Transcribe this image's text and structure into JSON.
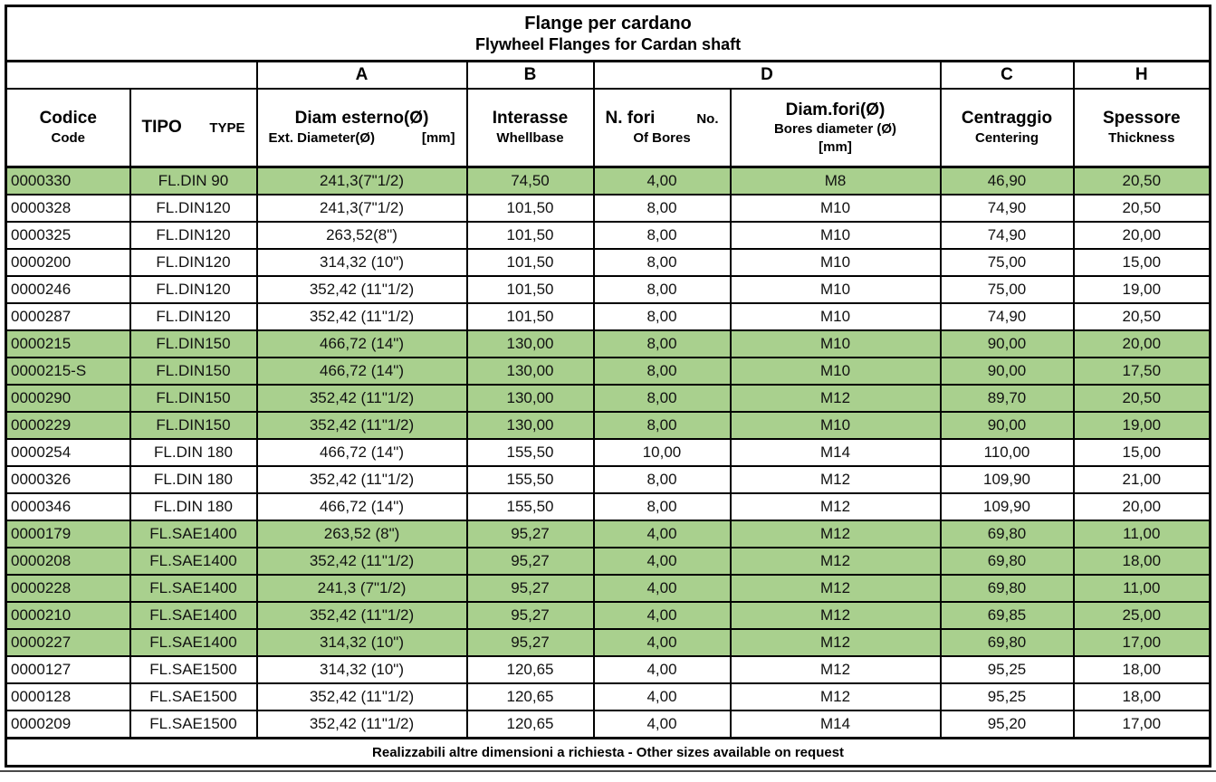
{
  "title": {
    "line1": "Flange per cardano",
    "line2": "Flywheel Flanges for Cardan shaft"
  },
  "group_headers": {
    "empty": "",
    "a": "A",
    "b": "B",
    "d": "D",
    "c": "C",
    "h": "H"
  },
  "columns": {
    "codice": {
      "main": "Codice",
      "sub": "Code"
    },
    "tipo": {
      "main": "TIPO",
      "side": "TYPE"
    },
    "diam_esterno": {
      "main": "Diam esterno(Ø)",
      "sub_left": "Ext. Diameter(Ø)",
      "sub_right": "[mm]"
    },
    "interasse": {
      "main": "Interasse",
      "sub": "Whellbase"
    },
    "n_fori": {
      "main": "N. fori",
      "side": "No.",
      "sub": "Of Bores"
    },
    "diam_fori": {
      "main": "Diam.fori(Ø)",
      "sub": "Bores  diameter (Ø)",
      "sub2": "[mm]"
    },
    "centraggio": {
      "main": "Centraggio",
      "sub": "Centering"
    },
    "spessore": {
      "main": "Spessore",
      "sub": "Thickness"
    }
  },
  "field_names": [
    "codice",
    "tipo",
    "diam-esterno",
    "interasse",
    "n-fori",
    "diam-fori",
    "centraggio",
    "spessore"
  ],
  "rows": [
    {
      "highlighted": true,
      "cells": [
        "0000330",
        "FL.DIN 90",
        "241,3(7\"1/2)",
        "74,50",
        "4,00",
        "M8",
        "46,90",
        "20,50"
      ]
    },
    {
      "highlighted": false,
      "cells": [
        "0000328",
        "FL.DIN120",
        "241,3(7\"1/2)",
        "101,50",
        "8,00",
        "M10",
        "74,90",
        "20,50"
      ]
    },
    {
      "highlighted": false,
      "cells": [
        "0000325",
        "FL.DIN120",
        "263,52(8\")",
        "101,50",
        "8,00",
        "M10",
        "74,90",
        "20,00"
      ]
    },
    {
      "highlighted": false,
      "cells": [
        "0000200",
        "FL.DIN120",
        "314,32 (10\")",
        "101,50",
        "8,00",
        "M10",
        "75,00",
        "15,00"
      ]
    },
    {
      "highlighted": false,
      "cells": [
        "0000246",
        "FL.DIN120",
        "352,42 (11\"1/2)",
        "101,50",
        "8,00",
        "M10",
        "75,00",
        "19,00"
      ]
    },
    {
      "highlighted": false,
      "cells": [
        "0000287",
        "FL.DIN120",
        "352,42 (11\"1/2)",
        "101,50",
        "8,00",
        "M10",
        "74,90",
        "20,50"
      ]
    },
    {
      "highlighted": true,
      "cells": [
        "0000215",
        "FL.DIN150",
        "466,72 (14\")",
        "130,00",
        "8,00",
        "M10",
        "90,00",
        "20,00"
      ]
    },
    {
      "highlighted": true,
      "cells": [
        "0000215-S",
        "FL.DIN150",
        "466,72 (14\")",
        "130,00",
        "8,00",
        "M10",
        "90,00",
        "17,50"
      ]
    },
    {
      "highlighted": true,
      "cells": [
        "0000290",
        "FL.DIN150",
        "352,42 (11\"1/2)",
        "130,00",
        "8,00",
        "M12",
        "89,70",
        "20,50"
      ]
    },
    {
      "highlighted": true,
      "cells": [
        "0000229",
        "FL.DIN150",
        "352,42 (11\"1/2)",
        "130,00",
        "8,00",
        "M10",
        "90,00",
        "19,00"
      ]
    },
    {
      "highlighted": false,
      "cells": [
        "0000254",
        "FL.DIN 180",
        "466,72 (14\")",
        "155,50",
        "10,00",
        "M14",
        "110,00",
        "15,00"
      ]
    },
    {
      "highlighted": false,
      "cells": [
        "0000326",
        "FL.DIN 180",
        "352,42 (11\"1/2)",
        "155,50",
        "8,00",
        "M12",
        "109,90",
        "21,00"
      ]
    },
    {
      "highlighted": false,
      "cells": [
        "0000346",
        "FL.DIN 180",
        "466,72 (14\")",
        "155,50",
        "8,00",
        "M12",
        "109,90",
        "20,00"
      ]
    },
    {
      "highlighted": true,
      "cells": [
        "0000179",
        "FL.SAE1400",
        "263,52 (8\")",
        "95,27",
        "4,00",
        "M12",
        "69,80",
        "11,00"
      ]
    },
    {
      "highlighted": true,
      "cells": [
        "0000208",
        "FL.SAE1400",
        "352,42 (11\"1/2)",
        "95,27",
        "4,00",
        "M12",
        "69,80",
        "18,00"
      ]
    },
    {
      "highlighted": true,
      "cells": [
        "0000228",
        "FL.SAE1400",
        "241,3 (7\"1/2)",
        "95,27",
        "4,00",
        "M12",
        "69,80",
        "11,00"
      ]
    },
    {
      "highlighted": true,
      "cells": [
        "0000210",
        "FL.SAE1400",
        "352,42 (11\"1/2)",
        "95,27",
        "4,00",
        "M12",
        "69,85",
        "25,00"
      ]
    },
    {
      "highlighted": true,
      "cells": [
        "0000227",
        "FL.SAE1400",
        "314,32 (10\")",
        "95,27",
        "4,00",
        "M12",
        "69,80",
        "17,00"
      ]
    },
    {
      "highlighted": false,
      "cells": [
        "0000127",
        "FL.SAE1500",
        "314,32 (10\")",
        "120,65",
        "4,00",
        "M12",
        "95,25",
        "18,00"
      ]
    },
    {
      "highlighted": false,
      "cells": [
        "0000128",
        "FL.SAE1500",
        "352,42 (11\"1/2)",
        "120,65",
        "4,00",
        "M12",
        "95,25",
        "18,00"
      ]
    },
    {
      "highlighted": false,
      "cells": [
        "0000209",
        "FL.SAE1500",
        "352,42 (11\"1/2)",
        "120,65",
        "4,00",
        "M14",
        "95,20",
        "17,00"
      ]
    }
  ],
  "footer": {
    "note": "Realizzabili altre dimensioni a richiesta - Other sizes available on request"
  },
  "colors": {
    "highlight_green": "#a9d08e",
    "border_black": "#000000",
    "background_white": "#ffffff"
  }
}
